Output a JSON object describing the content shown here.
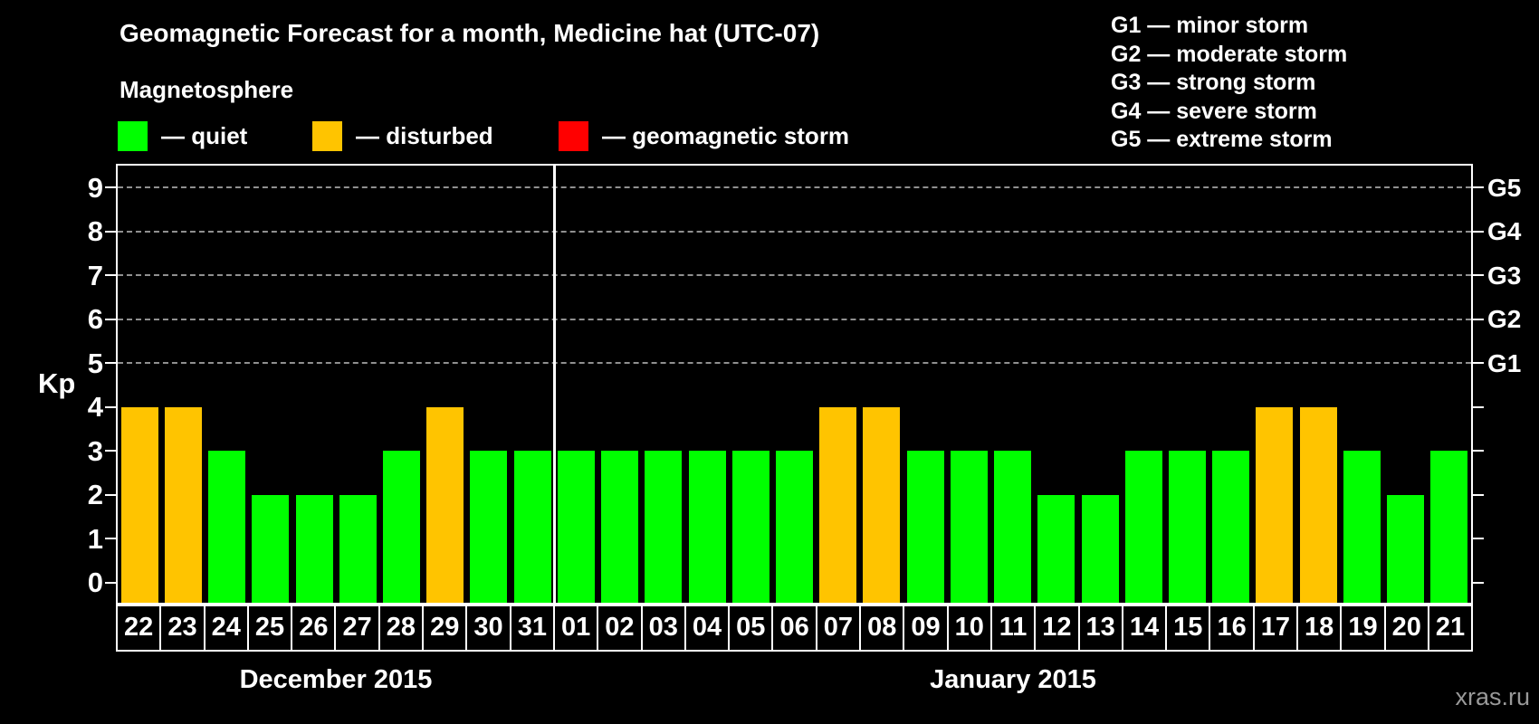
{
  "title": "Geomagnetic Forecast for a month, Medicine hat (UTC-07)",
  "subtitle": "Magnetosphere",
  "legend": {
    "items": [
      {
        "name": "quiet",
        "label": "— quiet",
        "color": "#00FF00"
      },
      {
        "name": "disturbed",
        "label": "— disturbed",
        "color": "#FFC400"
      },
      {
        "name": "storm",
        "label": "— geomagnetic storm",
        "color": "#FF0000"
      }
    ]
  },
  "g_legend": {
    "items": [
      "G1 — minor storm",
      "G2 — moderate storm",
      "G3 — strong storm",
      "G4 — severe storm",
      "G5 — extreme storm"
    ]
  },
  "watermark": "xras.ru",
  "chart_data": {
    "type": "bar",
    "title": "Geomagnetic Forecast for a month, Medicine hat (UTC-07)",
    "ylabel": "Kp",
    "ylim": [
      0,
      9
    ],
    "yticks": [
      0,
      1,
      2,
      3,
      4,
      5,
      6,
      7,
      8,
      9
    ],
    "gridlines_at": [
      5,
      6,
      7,
      8,
      9
    ],
    "grid": "dashed horizontal lines at storm levels only",
    "legend_position": "top",
    "right_axis": [
      {
        "kp": 5,
        "label": "G1"
      },
      {
        "kp": 6,
        "label": "G2"
      },
      {
        "kp": 7,
        "label": "G3"
      },
      {
        "kp": 8,
        "label": "G4"
      },
      {
        "kp": 9,
        "label": "G5"
      }
    ],
    "status_colors": {
      "quiet": "#00FF00",
      "disturbed": "#FFC400",
      "storm": "#FF0000"
    },
    "months": [
      {
        "label": "December 2015",
        "days": [
          {
            "day": "22",
            "kp": 4,
            "status": "disturbed"
          },
          {
            "day": "23",
            "kp": 4,
            "status": "disturbed"
          },
          {
            "day": "24",
            "kp": 3,
            "status": "quiet"
          },
          {
            "day": "25",
            "kp": 2,
            "status": "quiet"
          },
          {
            "day": "26",
            "kp": 2,
            "status": "quiet"
          },
          {
            "day": "27",
            "kp": 2,
            "status": "quiet"
          },
          {
            "day": "28",
            "kp": 3,
            "status": "quiet"
          },
          {
            "day": "29",
            "kp": 4,
            "status": "disturbed"
          },
          {
            "day": "30",
            "kp": 3,
            "status": "quiet"
          },
          {
            "day": "31",
            "kp": 3,
            "status": "quiet"
          }
        ]
      },
      {
        "label": "January 2015",
        "days": [
          {
            "day": "01",
            "kp": 3,
            "status": "quiet"
          },
          {
            "day": "02",
            "kp": 3,
            "status": "quiet"
          },
          {
            "day": "03",
            "kp": 3,
            "status": "quiet"
          },
          {
            "day": "04",
            "kp": 3,
            "status": "quiet"
          },
          {
            "day": "05",
            "kp": 3,
            "status": "quiet"
          },
          {
            "day": "06",
            "kp": 3,
            "status": "quiet"
          },
          {
            "day": "07",
            "kp": 4,
            "status": "disturbed"
          },
          {
            "day": "08",
            "kp": 4,
            "status": "disturbed"
          },
          {
            "day": "09",
            "kp": 3,
            "status": "quiet"
          },
          {
            "day": "10",
            "kp": 3,
            "status": "quiet"
          },
          {
            "day": "11",
            "kp": 3,
            "status": "quiet"
          },
          {
            "day": "12",
            "kp": 2,
            "status": "quiet"
          },
          {
            "day": "13",
            "kp": 2,
            "status": "quiet"
          },
          {
            "day": "14",
            "kp": 3,
            "status": "quiet"
          },
          {
            "day": "15",
            "kp": 3,
            "status": "quiet"
          },
          {
            "day": "16",
            "kp": 3,
            "status": "quiet"
          },
          {
            "day": "17",
            "kp": 4,
            "status": "disturbed"
          },
          {
            "day": "18",
            "kp": 4,
            "status": "disturbed"
          },
          {
            "day": "19",
            "kp": 3,
            "status": "quiet"
          },
          {
            "day": "20",
            "kp": 2,
            "status": "quiet"
          },
          {
            "day": "21",
            "kp": 3,
            "status": "quiet"
          }
        ]
      }
    ]
  }
}
